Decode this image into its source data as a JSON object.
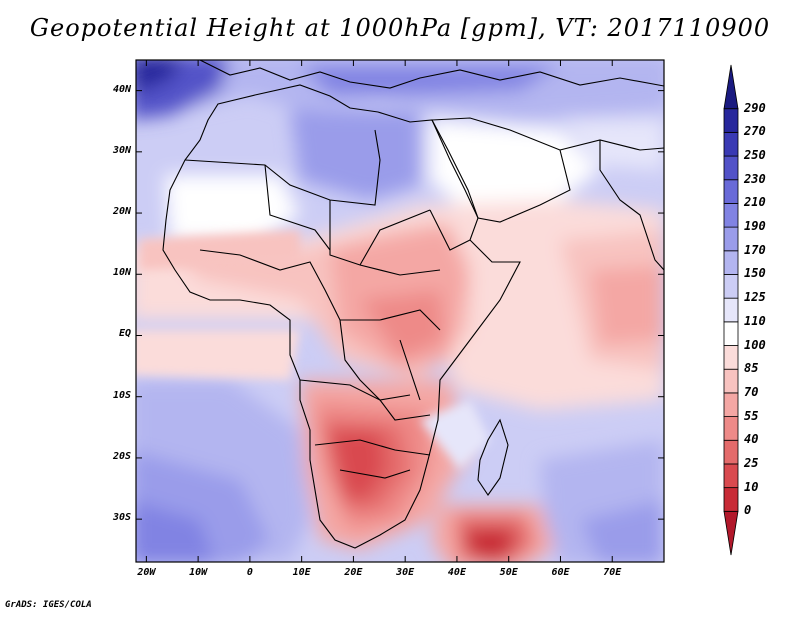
{
  "title": "Geopotential Height at 1000hPa [gpm], VT: 2017110900",
  "credit": "GrADS: IGES/COLA",
  "map": {
    "variable": "Geopotential Height",
    "level": "1000hPa",
    "units": "gpm",
    "valid_time": "2017110900",
    "lon_range": [
      -22,
      80
    ],
    "lat_range": [
      -37,
      45
    ],
    "lat_ticks": [
      {
        "value": 40,
        "label": "40N"
      },
      {
        "value": 30,
        "label": "30N"
      },
      {
        "value": 20,
        "label": "20N"
      },
      {
        "value": 10,
        "label": "10N"
      },
      {
        "value": 0,
        "label": "EQ"
      },
      {
        "value": -10,
        "label": "10S"
      },
      {
        "value": -20,
        "label": "20S"
      },
      {
        "value": -30,
        "label": "30S"
      }
    ],
    "lon_ticks": [
      {
        "value": -20,
        "label": "20W"
      },
      {
        "value": -10,
        "label": "10W"
      },
      {
        "value": 0,
        "label": "0"
      },
      {
        "value": 10,
        "label": "10E"
      },
      {
        "value": 20,
        "label": "20E"
      },
      {
        "value": 30,
        "label": "30E"
      },
      {
        "value": 40,
        "label": "40E"
      },
      {
        "value": 50,
        "label": "50E"
      },
      {
        "value": 60,
        "label": "60E"
      },
      {
        "value": 70,
        "label": "70E"
      }
    ]
  },
  "colorbar": {
    "levels": [
      "0",
      "10",
      "25",
      "40",
      "55",
      "70",
      "85",
      "100",
      "110",
      "125",
      "150",
      "170",
      "190",
      "210",
      "230",
      "250",
      "270",
      "290"
    ],
    "colors": [
      "#b2182b",
      "#c82b36",
      "#d94a4f",
      "#e46b6b",
      "#ee8a88",
      "#f4a7a4",
      "#f8c3c0",
      "#fbdcda",
      "#ffffff",
      "#e6e6fa",
      "#cccdf5",
      "#b3b5f0",
      "#9a9cea",
      "#8183e3",
      "#696ad8",
      "#5252c8",
      "#3a3ab4",
      "#27279c",
      "#1a1a80"
    ]
  }
}
